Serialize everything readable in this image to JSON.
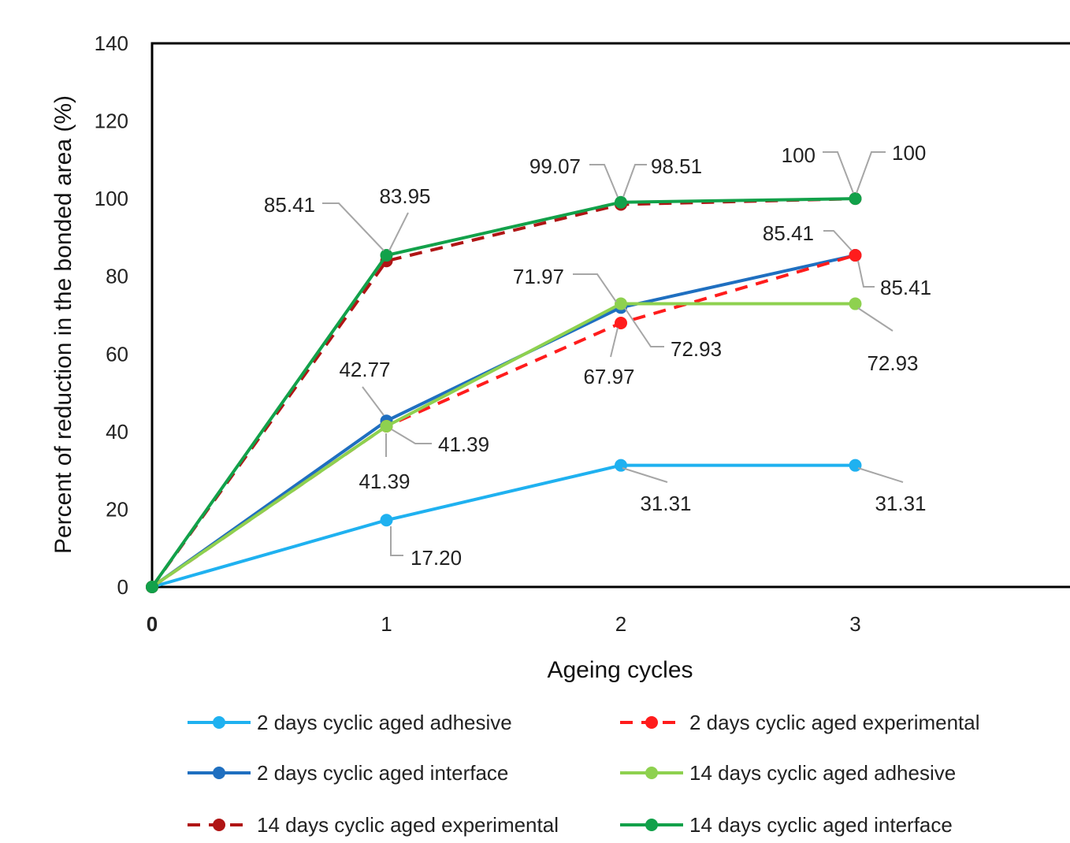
{
  "chart_data": {
    "type": "line",
    "title": "",
    "xlabel": "Ageing cycles",
    "ylabel": "Percent of reduction in the bonded area (%)",
    "x": [
      0,
      1,
      2,
      3
    ],
    "x_tick_labels": [
      "0",
      "1",
      "2",
      "3"
    ],
    "y_ticks": [
      0,
      20,
      40,
      60,
      80,
      100,
      120,
      140
    ],
    "y_tick_labels": [
      "0",
      "20",
      "40",
      "60",
      "80",
      "100",
      "120",
      "140"
    ],
    "ylim": [
      0,
      140
    ],
    "grid": false,
    "legend_position": "bottom",
    "series": [
      {
        "name": "2 days cyclic aged adhesive",
        "values": [
          0,
          17.2,
          31.31,
          31.31
        ],
        "color": "#1fb1f0",
        "dashed": false
      },
      {
        "name": "2 days cyclic aged experimental",
        "values": [
          0,
          41.39,
          67.97,
          85.41
        ],
        "color": "#ff1c1c",
        "dashed": true
      },
      {
        "name": "2 days cyclic aged interface",
        "values": [
          0,
          42.77,
          71.97,
          85.41
        ],
        "color": "#1f6fc0",
        "dashed": false
      },
      {
        "name": "14 days cyclic aged adhesive",
        "values": [
          0,
          41.39,
          72.93,
          72.93
        ],
        "color": "#8ed14f",
        "dashed": false
      },
      {
        "name": "14 days cyclic aged experimental",
        "values": [
          0,
          83.95,
          98.51,
          100
        ],
        "color": "#b01515",
        "dashed": true
      },
      {
        "name": "14 days cyclic aged interface",
        "values": [
          0,
          85.41,
          99.07,
          100
        ],
        "color": "#12a14a",
        "dashed": false
      }
    ],
    "data_labels": [
      "17.20",
      "31.31",
      "31.31",
      "42.77",
      "41.39",
      "41.39",
      "71.97",
      "67.97",
      "72.93",
      "85.41",
      "85.41",
      "72.93",
      "85.41",
      "83.95",
      "99.07",
      "98.51",
      "100",
      "100"
    ]
  }
}
